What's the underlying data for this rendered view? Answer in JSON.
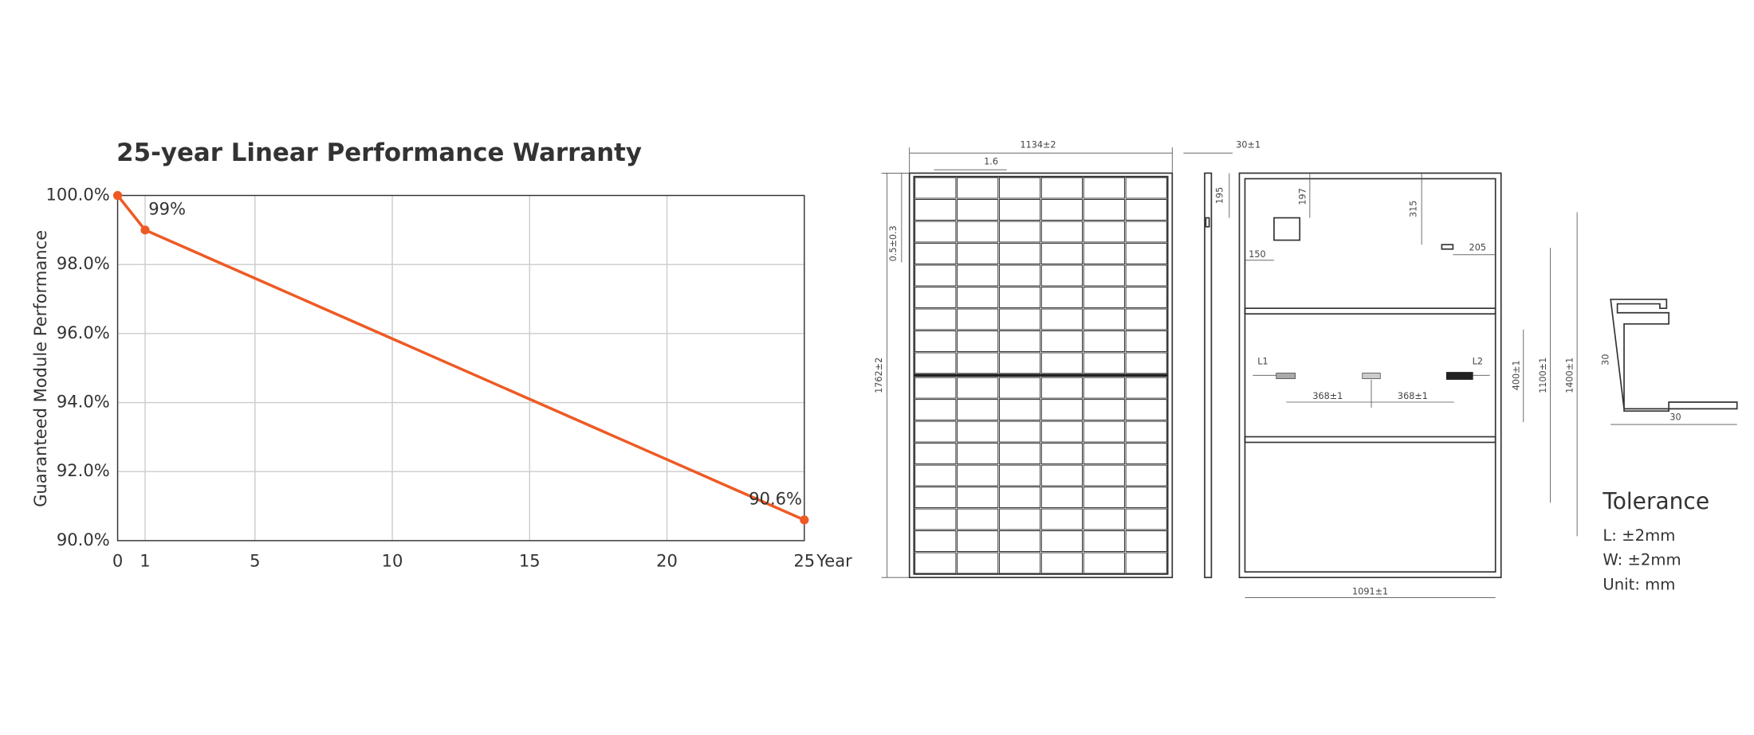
{
  "chart_data": {
    "type": "line",
    "title": "25-year Linear Performance Warranty",
    "y_label": "Guaranteed Module Performance",
    "x_label": "Year",
    "x": [
      0,
      1,
      5,
      10,
      15,
      20,
      25
    ],
    "values": [
      100,
      99,
      97.6,
      95.85,
      94.1,
      92.35,
      90.6
    ],
    "value_labels": [
      null,
      "99%",
      null,
      null,
      null,
      null,
      "90.6%"
    ],
    "color": "#ee5a24",
    "xlim": [
      0,
      25
    ],
    "xticks": [
      0,
      1,
      5,
      10,
      15,
      20,
      25
    ],
    "ylim": [
      90,
      100
    ],
    "yticks": [
      {
        "value": 90,
        "label": "90.0%"
      },
      {
        "value": 92,
        "label": "92.0%"
      },
      {
        "value": 94,
        "label": "94.0%"
      },
      {
        "value": 96,
        "label": "96.0%"
      },
      {
        "value": 98,
        "label": "98.0%"
      },
      {
        "value": 100,
        "label": "100.0%"
      }
    ],
    "grid": true
  },
  "drawing": {
    "dimensions": [
      "1134±2",
      "1.6",
      "30±1",
      "0.5±0.3",
      "195",
      "197",
      "315",
      "150",
      "205",
      "1762±2",
      "L1",
      "L2",
      "368±1",
      "368±1",
      "400±1",
      "1100±1",
      "1400±1",
      "1091±1",
      "30",
      "30"
    ],
    "tolerance": {
      "title": "Tolerance",
      "lines": [
        "L: ±2mm",
        "W: ±2mm",
        "Unit: mm"
      ]
    }
  }
}
